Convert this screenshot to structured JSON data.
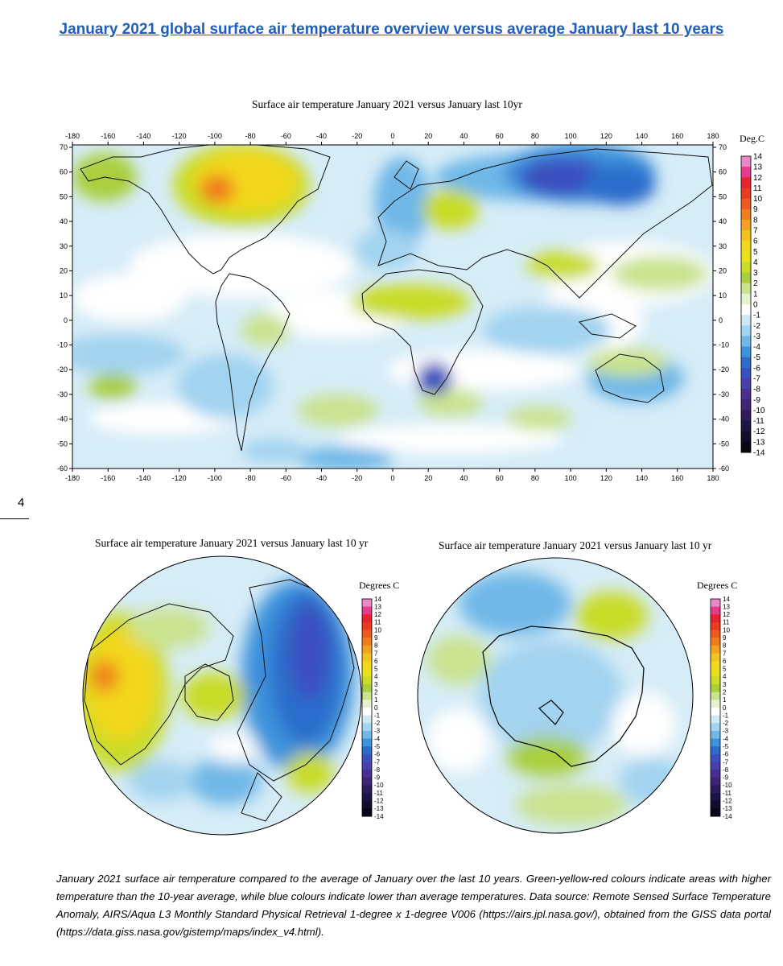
{
  "heading": "January 2021 global surface air temperature overview versus average January last 10 years",
  "page_number": "4",
  "world_map": {
    "title": "Surface air temperature January 2021 versus January last 10yr",
    "x_ticks": [
      "-180",
      "-160",
      "-140",
      "-120",
      "-100",
      "-80",
      "-60",
      "-40",
      "-20",
      "0",
      "20",
      "40",
      "60",
      "80",
      "100",
      "120",
      "140",
      "160",
      "180"
    ],
    "y_ticks": [
      "70",
      "60",
      "50",
      "40",
      "30",
      "20",
      "10",
      "0",
      "-10",
      "-20",
      "-30",
      "-40",
      "-50",
      "-60"
    ],
    "colorbar_title": "Deg.C"
  },
  "north_polar_map": {
    "title": "Surface air temperature January 2021 versus January last 10 yr",
    "colorbar_title": "Degrees C"
  },
  "south_polar_map": {
    "title": "Surface air temperature January 2021 versus January last 10 yr",
    "colorbar_title": "Degrees C"
  },
  "colorbar_ticks": [
    "14",
    "13",
    "12",
    "11",
    "10",
    "9",
    "8",
    "7",
    "6",
    "5",
    "4",
    "3",
    "2",
    "1",
    "0",
    "-1",
    "-2",
    "-3",
    "-4",
    "-5",
    "-6",
    "-7",
    "-8",
    "-9",
    "-10",
    "-11",
    "-12",
    "-13",
    "-14"
  ],
  "colorbar_colors": [
    "#e889c8",
    "#e63a8a",
    "#e8232e",
    "#ea3a22",
    "#ec5a20",
    "#ef7d1e",
    "#f2a21f",
    "#f3c21f",
    "#f2d71c",
    "#e9e21a",
    "#c9dc28",
    "#a9cf3e",
    "#c9e38e",
    "#e6f2cf",
    "#ffffff",
    "#cfe8f6",
    "#a2d3f0",
    "#6fb8e8",
    "#3d92dc",
    "#2c6dcc",
    "#3b4fbf",
    "#4a3eaa",
    "#4a2f91",
    "#3d2476",
    "#2d1b5c",
    "#1e1443",
    "#120d2b",
    "#070614"
  ],
  "caption": "January 2021 surface air temperature compared to the average of January over the last 10 years. Green-yellow-red colours indicate areas with higher temperature than the 10-year average, while blue colours indicate lower than average temperatures. Data source: Remote Sensed Surface Temperature Anomaly, AIRS/Aqua L3 Monthly Standard Physical Retrieval 1-degree x 1-degree V006 (https://airs.jpl.nasa.gov/), obtained from the GISS data portal (https://data.giss.nasa.gov/gistemp/maps/index_v4.html)."
}
